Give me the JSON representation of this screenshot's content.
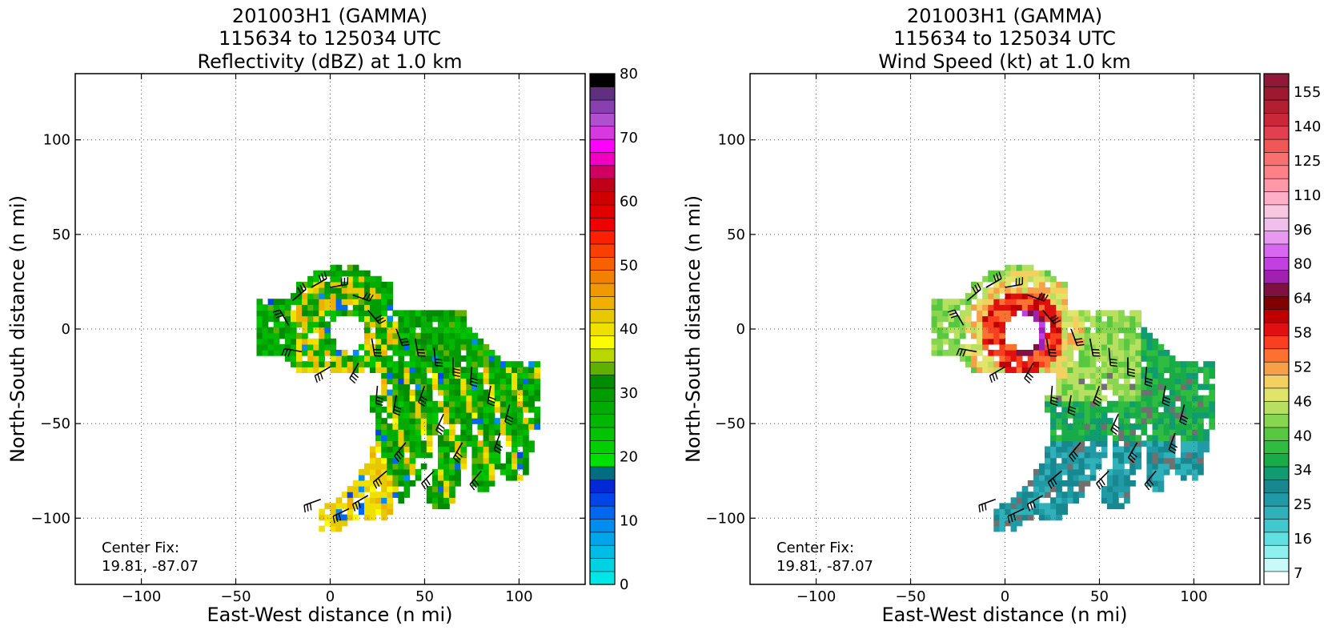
{
  "chart_data": [
    {
      "type": "heatmap",
      "title_lines": [
        "201003H1 (GAMMA)",
        "115634 to 125034 UTC",
        "Reflectivity (dBZ) at 1.0 km"
      ],
      "xlabel": "East-West distance (n mi)",
      "ylabel": "North-South distance (n mi)",
      "xlim": [
        -135,
        135
      ],
      "ylim": [
        -135,
        135
      ],
      "xticks": [
        -100,
        -50,
        0,
        50,
        100
      ],
      "yticks": [
        -100,
        -50,
        0,
        50,
        100
      ],
      "grid": true,
      "annotation": [
        "Center Fix:",
        "19.81, -87.07"
      ],
      "colorbar": {
        "range": [
          0,
          80
        ],
        "tick_labels": [
          "0",
          "10",
          "20",
          "30",
          "40",
          "50",
          "60",
          "70",
          "80"
        ],
        "colors": [
          "#00e5e5",
          "#00d2e3",
          "#00bde6",
          "#00a5ea",
          "#008df0",
          "#0068f0",
          "#0045e8",
          "#0028d8",
          "#006e80",
          "#00e000",
          "#00d000",
          "#00c400",
          "#00b800",
          "#00ac00",
          "#009c00",
          "#008c00",
          "#60b000",
          "#b8d800",
          "#fcfc00",
          "#f0e000",
          "#e8c800",
          "#f0b000",
          "#f29800",
          "#f48000",
          "#f86000",
          "#fa4000",
          "#fc2000",
          "#f00000",
          "#e00000",
          "#d00000",
          "#c00018",
          "#d00060",
          "#f000c0",
          "#ff00ff",
          "#d838e0",
          "#b050d0",
          "#8840b0",
          "#603080",
          "#000000"
        ]
      },
      "field": "reflectivity"
    },
    {
      "type": "heatmap",
      "title_lines": [
        "201003H1 (GAMMA)",
        "115634 to 125034 UTC",
        "Wind Speed (kt) at 1.0 km"
      ],
      "xlabel": "East-West distance (n mi)",
      "ylabel": "North-South distance (n mi)",
      "xlim": [
        -135,
        135
      ],
      "ylim": [
        -135,
        135
      ],
      "xticks": [
        -100,
        -50,
        0,
        50,
        100
      ],
      "yticks": [
        -100,
        -50,
        0,
        50,
        100
      ],
      "grid": true,
      "annotation": [
        "Center Fix:",
        "19.81, -87.07"
      ],
      "colorbar": {
        "tick_labels": [
          "7",
          "16",
          "25",
          "34",
          "40",
          "46",
          "52",
          "58",
          "64",
          "80",
          "96",
          "110",
          "125",
          "140",
          "155"
        ],
        "colors": [
          "#ffffff",
          "#c8fafa",
          "#90f0f0",
          "#60e0e0",
          "#40c8cc",
          "#30b0b8",
          "#209aa4",
          "#188890",
          "#109c70",
          "#18ac48",
          "#30bc40",
          "#58c840",
          "#88d650",
          "#b8e060",
          "#e0e468",
          "#f4d060",
          "#f8a048",
          "#fc7030",
          "#f84020",
          "#e01010",
          "#c00000",
          "#800000",
          "#801040",
          "#a020b0",
          "#c040e0",
          "#d868f0",
          "#e898f0",
          "#f0c0ec",
          "#f8c8e0",
          "#ffb0c8",
          "#ff98a8",
          "#ff8088",
          "#f87070",
          "#f05858",
          "#e04050",
          "#c82838",
          "#b02030",
          "#a01830",
          "#901838"
        ]
      },
      "field": "wind"
    }
  ]
}
